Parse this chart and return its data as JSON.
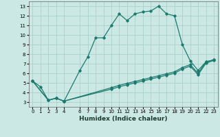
{
  "xlabel": "Humidex (Indice chaleur)",
  "bg_color": "#cce8e4",
  "grid_color": "#aacfcb",
  "line_color": "#1a7a6e",
  "xlim": [
    -0.5,
    23.5
  ],
  "ylim": [
    2.5,
    13.5
  ],
  "xticks": [
    0,
    1,
    2,
    3,
    4,
    6,
    7,
    8,
    9,
    10,
    11,
    12,
    13,
    14,
    15,
    16,
    17,
    18,
    19,
    20,
    21,
    22,
    23
  ],
  "yticks": [
    3,
    4,
    5,
    6,
    7,
    8,
    9,
    10,
    11,
    12,
    13
  ],
  "series1_x": [
    0,
    1,
    2,
    3,
    4,
    6,
    7,
    8,
    9,
    10,
    11,
    12,
    13,
    14,
    15,
    16,
    17,
    18,
    19,
    20,
    21,
    22,
    23
  ],
  "series1_y": [
    5.2,
    4.6,
    3.2,
    3.4,
    3.1,
    6.3,
    7.7,
    9.7,
    9.7,
    11.0,
    12.2,
    11.5,
    12.2,
    12.4,
    12.5,
    13.0,
    12.2,
    12.0,
    9.0,
    7.3,
    6.3,
    7.2,
    7.4
  ],
  "series2_x": [
    0,
    2,
    3,
    4,
    10,
    11,
    12,
    13,
    14,
    15,
    16,
    17,
    18,
    19,
    20,
    21,
    22,
    23
  ],
  "series2_y": [
    5.2,
    3.2,
    3.4,
    3.1,
    4.5,
    4.75,
    4.95,
    5.15,
    5.35,
    5.55,
    5.75,
    5.95,
    6.15,
    6.6,
    6.9,
    6.0,
    7.2,
    7.4
  ],
  "series3_x": [
    0,
    2,
    3,
    4,
    10,
    11,
    12,
    13,
    14,
    15,
    16,
    17,
    18,
    19,
    20,
    21,
    22,
    23
  ],
  "series3_y": [
    5.2,
    3.2,
    3.4,
    3.1,
    4.35,
    4.6,
    4.8,
    5.0,
    5.2,
    5.4,
    5.6,
    5.8,
    6.0,
    6.45,
    6.75,
    5.85,
    7.05,
    7.35
  ]
}
